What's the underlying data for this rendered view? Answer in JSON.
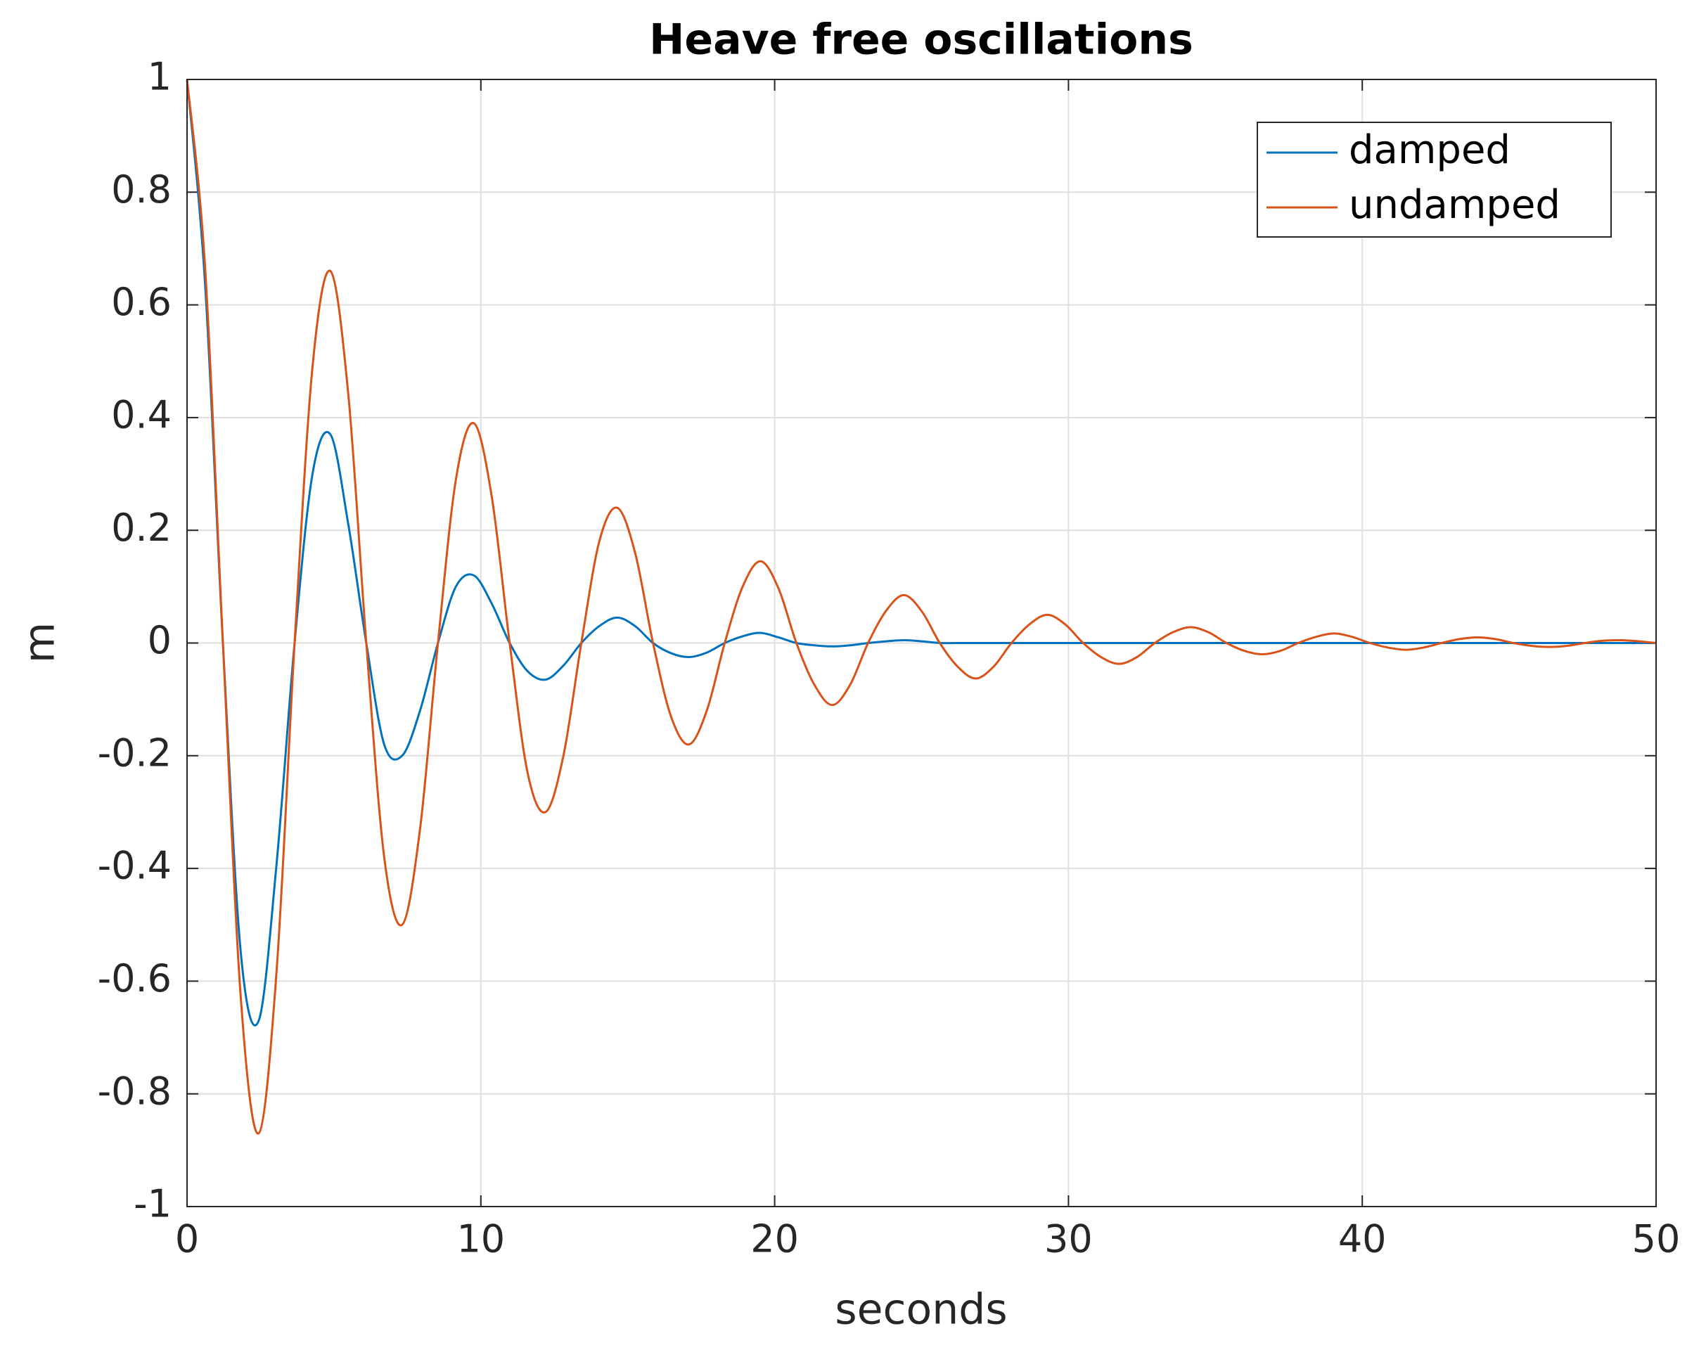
{
  "chart_data": {
    "type": "line",
    "title": "Heave free oscillations",
    "x_label": "seconds",
    "y_label": "m",
    "x": [
      0,
      0.61,
      1.22,
      1.83,
      2.44,
      3.05,
      3.66,
      4.27,
      4.88,
      5.49,
      6.1,
      6.71,
      7.32,
      7.93,
      8.54,
      9.15,
      9.76,
      10.37,
      10.98,
      11.59,
      12.2,
      12.81,
      13.42,
      14.03,
      14.64,
      15.25,
      15.86,
      16.47,
      17.08,
      17.69,
      18.3,
      18.91,
      19.52,
      20.13,
      20.74,
      21.35,
      21.96,
      22.57,
      23.18,
      23.79,
      24.4,
      25.01,
      25.62,
      26.23,
      26.84,
      27.45,
      28.06,
      28.67,
      29.28,
      29.89,
      30.5,
      31.11,
      31.72,
      32.33,
      32.94,
      33.55,
      34.16,
      34.77,
      35.38,
      35.99,
      36.6,
      37.21,
      37.82,
      38.43,
      39.04,
      39.65,
      40.26,
      40.87,
      41.48,
      42.09,
      42.7,
      43.31,
      43.92,
      44.53,
      45.14,
      45.75,
      46.36,
      46.97,
      47.58,
      48.19,
      48.8,
      49.41,
      50
    ],
    "series": [
      {
        "name": "damped",
        "color": "#0072bd",
        "values": [
          1,
          0.64,
          0,
          -0.55,
          -0.67,
          -0.39,
          0,
          0.3,
          0.37,
          0.21,
          0,
          -0.18,
          -0.2,
          -0.12,
          0,
          0.1,
          0.12,
          0.07,
          0,
          -0.05,
          -0.065,
          -0.04,
          0,
          0.03,
          0.045,
          0.03,
          0,
          -0.018,
          -0.025,
          -0.017,
          0,
          0.012,
          0.018,
          0.01,
          0,
          -0.004,
          -0.006,
          -0.004,
          0,
          0.003,
          0.005,
          0.003,
          0,
          0,
          0,
          0,
          0,
          0,
          0,
          0,
          0,
          0,
          0,
          0,
          0,
          0,
          0,
          0,
          0,
          0,
          0,
          0,
          0,
          0,
          0,
          0,
          0,
          0,
          0,
          0,
          0,
          0,
          0,
          0,
          0,
          0,
          0,
          0,
          0,
          0,
          0,
          0,
          0
        ]
      },
      {
        "name": "undamped",
        "color": "#d95319",
        "values": [
          1,
          0.67,
          0,
          -0.63,
          -0.87,
          -0.58,
          0,
          0.49,
          0.66,
          0.44,
          0,
          -0.38,
          -0.5,
          -0.33,
          0,
          0.29,
          0.39,
          0.26,
          0,
          -0.23,
          -0.3,
          -0.2,
          0,
          0.18,
          0.24,
          0.16,
          0,
          -0.13,
          -0.18,
          -0.12,
          0,
          0.1,
          0.145,
          0.097,
          0,
          -0.074,
          -0.11,
          -0.074,
          0,
          0.057,
          0.085,
          0.056,
          0,
          -0.042,
          -0.063,
          -0.042,
          0,
          0.033,
          0.05,
          0.033,
          0,
          -0.025,
          -0.037,
          -0.025,
          0,
          0.019,
          0.028,
          0.019,
          0,
          -0.014,
          -0.02,
          -0.014,
          0,
          0.011,
          0.017,
          0.011,
          0,
          -0.008,
          -0.012,
          -0.008,
          0,
          0.007,
          0.01,
          0.007,
          0,
          -0.005,
          -0.007,
          -0.005,
          0,
          0.004,
          0.005,
          0.003,
          0
        ]
      }
    ],
    "xlim": [
      0,
      50
    ],
    "xticks": [
      0,
      10,
      20,
      30,
      40,
      50
    ],
    "ylim": [
      -1,
      1
    ],
    "yticks": [
      -1,
      -0.8,
      -0.6,
      -0.4,
      -0.2,
      0,
      0.2,
      0.4,
      0.6,
      0.8,
      1
    ],
    "grid": true,
    "legend": "northeast"
  }
}
